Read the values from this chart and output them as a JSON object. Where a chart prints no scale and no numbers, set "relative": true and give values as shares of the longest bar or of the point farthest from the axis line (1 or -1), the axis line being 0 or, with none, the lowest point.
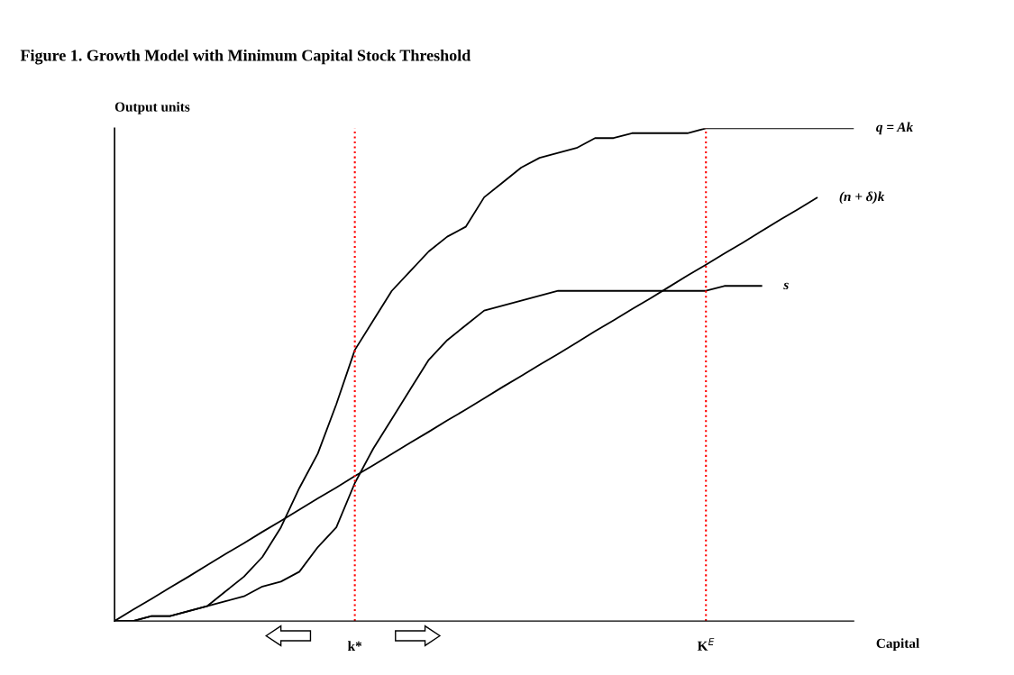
{
  "chart_data": {
    "type": "line",
    "relative": true,
    "title": "Figure 1. Growth Model with Minimum Capital Stock Threshold",
    "ylabel": "Output units",
    "xlabel": "Capital",
    "categories": [
      null,
      null,
      null,
      null,
      null,
      null,
      null,
      null,
      null,
      null,
      null,
      null,
      null,
      "k*",
      null,
      null,
      null,
      null,
      null,
      null,
      null,
      null,
      null,
      null,
      null,
      null,
      null,
      null,
      null,
      null,
      null,
      null,
      "K$^{E}$",
      null,
      null,
      null,
      null,
      null,
      null,
      null,
      null
    ],
    "series": [
      {
        "name": "q = Ak",
        "color": "#000000",
        "values": [
          0,
          0,
          0.01,
          0.01,
          0.02,
          0.03,
          0.06,
          0.09,
          0.13,
          0.19,
          0.27,
          0.34,
          0.44,
          0.55,
          0.61,
          0.67,
          0.71,
          0.75,
          0.78,
          0.8,
          0.86,
          0.89,
          0.92,
          0.94,
          0.95,
          0.96,
          0.98,
          0.98,
          0.99,
          0.99,
          0.99,
          0.99,
          1.0,
          1.0,
          1.0,
          1.0,
          1.0,
          1.0,
          1.0,
          1.0,
          1.0
        ]
      },
      {
        "name": "(n + δ)k",
        "color": "#000000",
        "values": [
          0,
          0.023,
          0.045,
          0.068,
          0.09,
          0.113,
          0.136,
          0.158,
          0.181,
          0.203,
          0.226,
          0.249,
          0.271,
          0.294,
          0.316,
          0.339,
          0.362,
          0.384,
          0.407,
          0.429,
          0.452,
          0.475,
          0.497,
          0.52,
          0.542,
          0.565,
          0.588,
          0.61,
          0.633,
          0.655,
          0.678,
          0.701,
          0.723,
          0.746,
          0.768,
          0.791,
          0.814,
          0.836,
          0.859,
          null,
          null
        ]
      },
      {
        "name": "s",
        "color": "#000000",
        "values": [
          0,
          0,
          0.01,
          0.01,
          0.02,
          0.03,
          0.04,
          0.05,
          0.07,
          0.08,
          0.1,
          0.15,
          0.19,
          0.28,
          0.35,
          0.41,
          0.47,
          0.53,
          0.57,
          0.6,
          0.63,
          0.64,
          0.65,
          0.66,
          0.67,
          0.67,
          0.67,
          0.67,
          0.67,
          0.67,
          0.67,
          0.67,
          0.67,
          0.68,
          0.68,
          0.68,
          null,
          null,
          null,
          null,
          null
        ]
      }
    ],
    "ref_lines": [
      {
        "axis": "x",
        "value": "k*",
        "color": "#ff0000",
        "line_style": "dotted"
      },
      {
        "axis": "x",
        "value": "K$^{E}$",
        "color": "#ff0000",
        "line_style": "dotted"
      }
    ],
    "tick_labels": "x",
    "marker": "none",
    "line_style": "solid"
  }
}
